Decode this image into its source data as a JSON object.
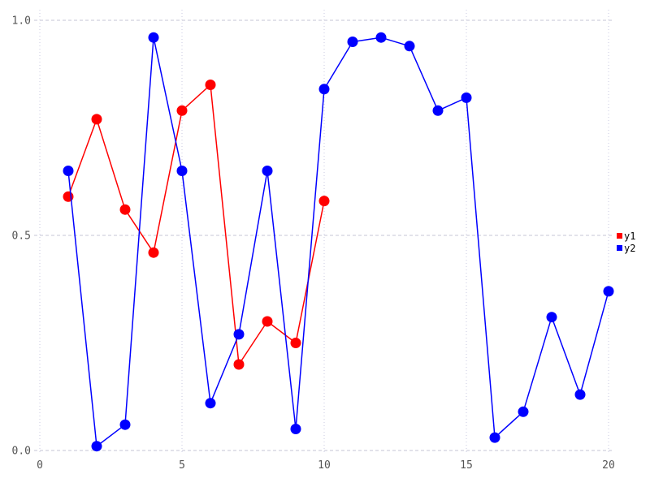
{
  "chart_data": {
    "type": "line",
    "title": "",
    "xlabel": "",
    "ylabel": "",
    "xlim": [
      0,
      20
    ],
    "ylim": [
      0.0,
      1.0
    ],
    "x_ticks": [
      0,
      5,
      10,
      15,
      20
    ],
    "x_tick_labels": [
      "0",
      "5",
      "10",
      "15",
      "20"
    ],
    "y_ticks": [
      0.0,
      0.5,
      1.0
    ],
    "y_tick_labels": [
      "0.0",
      "0.5",
      "1.0"
    ],
    "grid": true,
    "legend_position": "right-middle",
    "series": [
      {
        "name": "y1",
        "color": "#ff0000",
        "x": [
          1,
          2,
          3,
          4,
          5,
          6,
          7,
          8,
          9,
          10
        ],
        "values": [
          0.59,
          0.77,
          0.56,
          0.46,
          0.79,
          0.85,
          0.2,
          0.3,
          0.25,
          0.58
        ]
      },
      {
        "name": "y2",
        "color": "#0000ff",
        "x": [
          1,
          2,
          3,
          4,
          5,
          6,
          7,
          8,
          9,
          10,
          11,
          12,
          13,
          14,
          15,
          16,
          17,
          18,
          19,
          20
        ],
        "values": [
          0.65,
          0.01,
          0.06,
          0.96,
          0.65,
          0.11,
          0.27,
          0.65,
          0.05,
          0.84,
          0.95,
          0.96,
          0.94,
          0.79,
          0.82,
          0.03,
          0.09,
          0.31,
          0.13,
          0.37
        ]
      }
    ]
  },
  "legend": {
    "items": [
      {
        "label": "y1",
        "color": "#ff0000"
      },
      {
        "label": "y2",
        "color": "#0000ff"
      }
    ]
  },
  "colors": {
    "background": "#ffffff",
    "grid_vertical": "#c9c9e0",
    "grid_horizontal": "#c6c6d4",
    "tick_label": "#545454",
    "legend_text": "#000000"
  }
}
